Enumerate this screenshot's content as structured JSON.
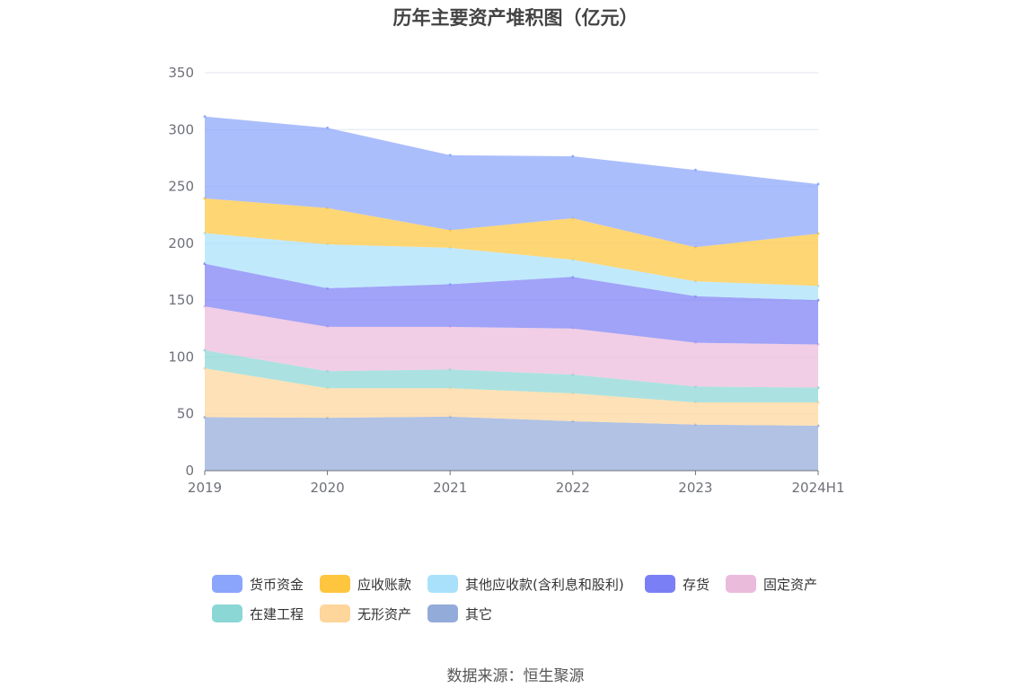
{
  "chart_data": {
    "type": "area",
    "stacked": true,
    "title": "历年主要资产堆积图（亿元）",
    "x": [
      "2019",
      "2020",
      "2021",
      "2022",
      "2023",
      "2024H1"
    ],
    "yticks": [
      0,
      50,
      100,
      150,
      200,
      250,
      300,
      350
    ],
    "ylim": [
      0,
      350
    ],
    "grid": true,
    "legend_position": "bottom",
    "series": [
      {
        "name": "其它",
        "color": "#93abd9",
        "values": [
          47,
          46.5,
          47.5,
          43.5,
          40.5,
          39.5
        ]
      },
      {
        "name": "无形资产",
        "color": "#fed59a",
        "values": [
          43,
          26,
          25,
          24.5,
          19.5,
          20.5
        ]
      },
      {
        "name": "在建工程",
        "color": "#8ad7d6",
        "values": [
          16,
          15,
          16.5,
          16.5,
          14,
          13
        ]
      },
      {
        "name": "固定资产",
        "color": "#ebbbdb",
        "values": [
          38.5,
          39,
          37.5,
          40.5,
          38.5,
          38
        ]
      },
      {
        "name": "存货",
        "color": "#7b7ff5",
        "values": [
          37.5,
          34,
          37.5,
          45.5,
          41,
          39
        ]
      },
      {
        "name": "其他应收款(含利息和股利)",
        "color": "#a9e1fb",
        "values": [
          27,
          38.5,
          32,
          15,
          13,
          12.5
        ]
      },
      {
        "name": "应收账款",
        "color": "#fec63e",
        "values": [
          30.5,
          32,
          15.5,
          36.5,
          30,
          46
        ]
      },
      {
        "name": "货币资金",
        "color": "#8aa5fb",
        "values": [
          72,
          70.5,
          66,
          54.5,
          68,
          43.5
        ]
      }
    ]
  },
  "legend_order": [
    "货币资金",
    "应收账款",
    "其他应收款(含利息和股利)",
    "存货",
    "固定资产",
    "在建工程",
    "无形资产",
    "其它"
  ],
  "source": "数据来源：恒生聚源"
}
